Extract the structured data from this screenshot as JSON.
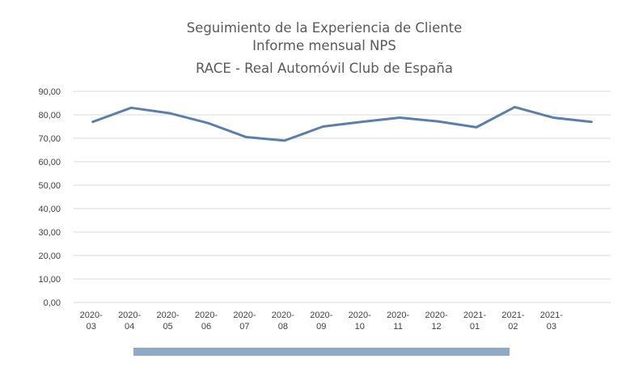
{
  "chart_data": {
    "type": "line",
    "title": [
      "Seguimiento de la Experiencia de Cliente",
      "Informe mensual NPS",
      "RACE - Real Automóvil Club de España"
    ],
    "categories": [
      [
        "2020-",
        "03"
      ],
      [
        "2020-",
        "04"
      ],
      [
        "2020-",
        "05"
      ],
      [
        "2020-",
        "06"
      ],
      [
        "2020-",
        "07"
      ],
      [
        "2020-",
        "08"
      ],
      [
        "2020-",
        "09"
      ],
      [
        "2020-",
        "10"
      ],
      [
        "2020-",
        "11"
      ],
      [
        "2020-",
        "12"
      ],
      [
        "2021-",
        "01"
      ],
      [
        "2021-",
        "02"
      ],
      [
        "2021-",
        "03"
      ],
      [
        "",
        ""
      ]
    ],
    "series": [
      {
        "values": [
          77.0,
          83.0,
          80.7,
          76.5,
          70.5,
          69.0,
          75.0,
          77.0,
          78.8,
          77.2,
          74.7,
          83.3,
          78.8,
          77.0
        ]
      }
    ],
    "yticks": [
      "0,00",
      "10,00",
      "20,00",
      "30,00",
      "40,00",
      "50,00",
      "60,00",
      "70,00",
      "80,00",
      "90,00"
    ],
    "ylim": [
      0,
      90
    ],
    "grid": true,
    "legend": "none",
    "colors": {
      "line": "#5b7fa8",
      "scrollbar": "#8eaac9",
      "grid": "#d9d9d9"
    }
  }
}
